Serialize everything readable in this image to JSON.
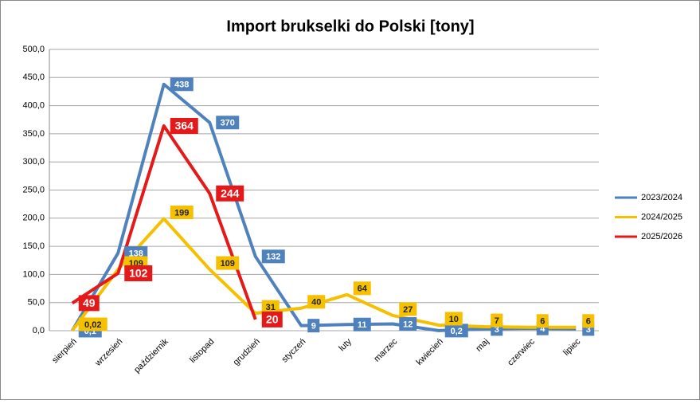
{
  "chart_data": {
    "type": "line",
    "title": "Import brukselki do Polski [tony]",
    "categories": [
      "sierpień",
      "wrzesień",
      "październik",
      "listopad",
      "grudzień",
      "styczeń",
      "luty",
      "marzec",
      "kwiecień",
      "maj",
      "czerwiec",
      "lipiec"
    ],
    "series": [
      {
        "name": "2023/2024",
        "color": "#4f81bd",
        "values": [
          0.1,
          138,
          438,
          370,
          132,
          9,
          11,
          12,
          0.2,
          3,
          4,
          3
        ],
        "value_labels": [
          "0,1",
          "138",
          "438",
          "370",
          "132",
          "9",
          "11",
          "12",
          "0,2",
          "3",
          "4",
          "3"
        ]
      },
      {
        "name": "2024/2025",
        "color": "#f5c000",
        "values": [
          0.02,
          109,
          199,
          109,
          31,
          40,
          64,
          27,
          10,
          7,
          6,
          6
        ],
        "value_labels": [
          "0,02",
          "109",
          "199",
          "109",
          "31",
          "40",
          "64",
          "27",
          "10",
          "7",
          "6",
          "6"
        ]
      },
      {
        "name": "2025/2026",
        "color": "#e41a1a",
        "values": [
          49,
          102,
          364,
          244,
          20,
          null,
          null,
          null,
          null,
          null,
          null,
          null
        ],
        "value_labels": [
          "49",
          "102",
          "364",
          "244",
          "20",
          null,
          null,
          null,
          null,
          null,
          null,
          null
        ]
      }
    ],
    "ylim": [
      0,
      500
    ],
    "yticks": [
      {
        "value": 0,
        "label": "0,0"
      },
      {
        "value": 50,
        "label": "50,0"
      },
      {
        "value": 100,
        "label": "100,0"
      },
      {
        "value": 150,
        "label": "150,0"
      },
      {
        "value": 200,
        "label": "200,0"
      },
      {
        "value": 250,
        "label": "250,0"
      },
      {
        "value": 300,
        "label": "300,0"
      },
      {
        "value": 350,
        "label": "350,0"
      },
      {
        "value": 400,
        "label": "400,0"
      },
      {
        "value": 450,
        "label": "450,0"
      },
      {
        "value": 500,
        "label": "500,0"
      }
    ],
    "grid": true,
    "legend": "right"
  }
}
